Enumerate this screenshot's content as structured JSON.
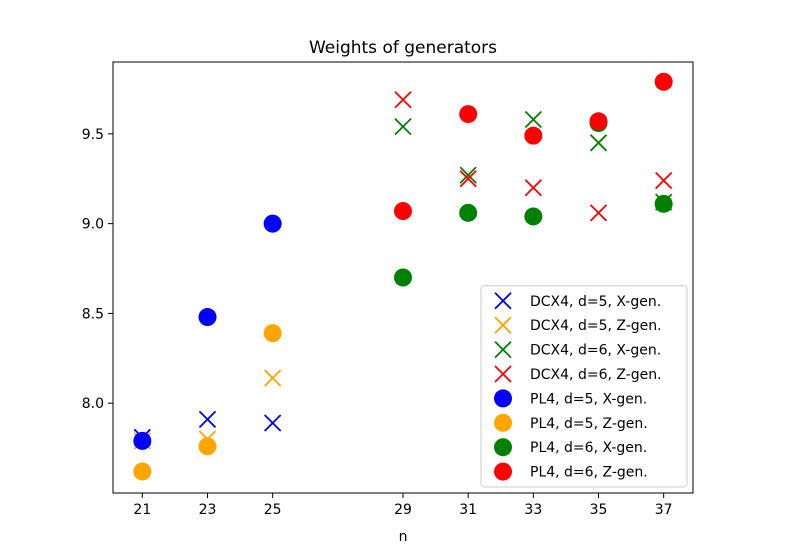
{
  "chart_data": {
    "type": "scatter",
    "title": "Weights of generators",
    "xlabel": "n",
    "ylabel": "",
    "xlim": [
      20.1,
      37.9
    ],
    "ylim": [
      7.5,
      9.9
    ],
    "xticks": [
      21,
      23,
      25,
      29,
      31,
      33,
      35,
      37
    ],
    "yticks": [
      8.0,
      8.5,
      9.0,
      9.5
    ],
    "ytick_labels": [
      "8.0",
      "8.5",
      "9.0",
      "9.5"
    ],
    "legend_position": "lower-right",
    "series": [
      {
        "name": "DCX4, d=5, X-gen.",
        "marker": "x",
        "color": "#0000ff",
        "x": [
          21,
          23,
          25
        ],
        "y": [
          7.81,
          7.91,
          7.89
        ]
      },
      {
        "name": "DCX4, d=5, Z-gen.",
        "marker": "x",
        "color": "#ffa500",
        "x": [
          21,
          23,
          25
        ],
        "y": [
          7.79,
          7.8,
          8.14
        ]
      },
      {
        "name": "DCX4, d=6, X-gen.",
        "marker": "x",
        "color": "#008000",
        "x": [
          29,
          31,
          33,
          35,
          37
        ],
        "y": [
          9.54,
          9.27,
          9.58,
          9.45,
          9.12
        ]
      },
      {
        "name": "DCX4, d=6, Z-gen.",
        "marker": "x",
        "color": "#ff0000",
        "x": [
          29,
          31,
          33,
          35,
          37
        ],
        "y": [
          9.69,
          9.25,
          9.2,
          9.06,
          9.24
        ]
      },
      {
        "name": "PL4, d=5, X-gen.",
        "marker": "o",
        "color": "#0000ff",
        "x": [
          21,
          23,
          25
        ],
        "y": [
          7.79,
          8.48,
          9.0
        ]
      },
      {
        "name": "PL4, d=5, Z-gen.",
        "marker": "o",
        "color": "#ffa500",
        "x": [
          21,
          23,
          25
        ],
        "y": [
          7.62,
          7.76,
          8.39
        ]
      },
      {
        "name": "PL4, d=6, X-gen.",
        "marker": "o",
        "color": "#008000",
        "x": [
          29,
          31,
          33,
          35,
          37
        ],
        "y": [
          8.7,
          9.06,
          9.04,
          9.56,
          9.11
        ]
      },
      {
        "name": "PL4, d=6, Z-gen.",
        "marker": "o",
        "color": "#ff0000",
        "x": [
          29,
          31,
          33,
          35,
          37
        ],
        "y": [
          9.07,
          9.61,
          9.49,
          9.57,
          9.79
        ]
      }
    ]
  }
}
